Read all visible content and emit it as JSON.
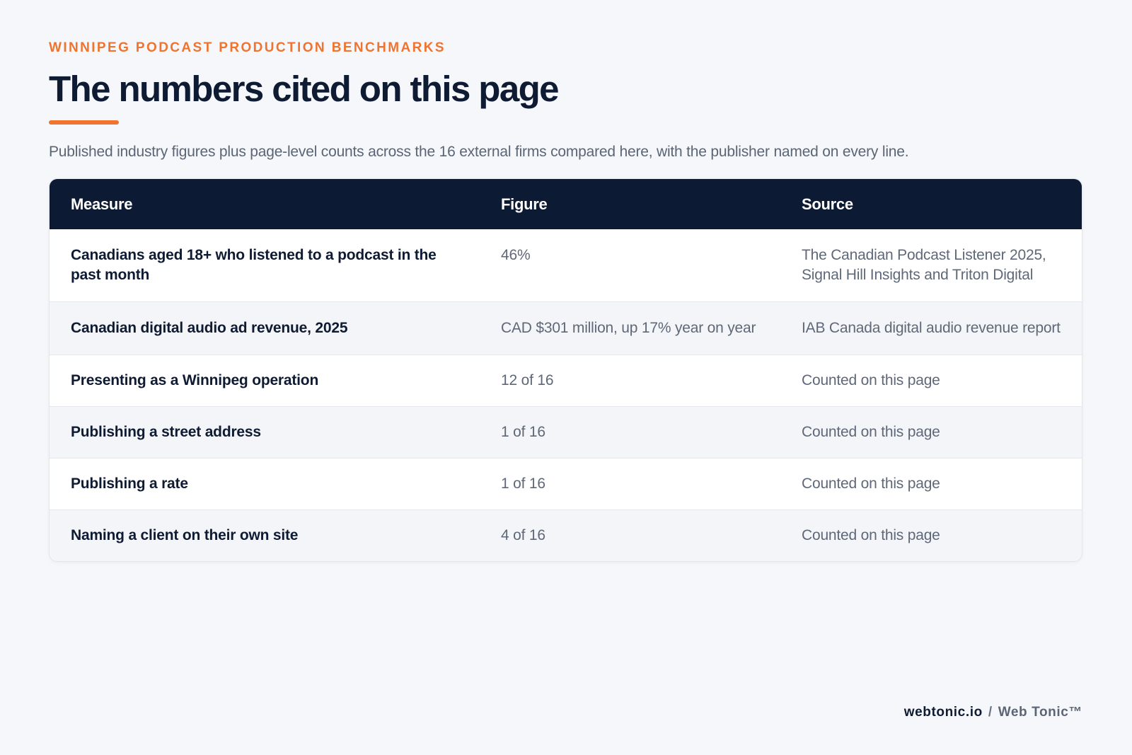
{
  "header": {
    "eyebrow": "WINNIPEG PODCAST PRODUCTION BENCHMARKS",
    "title": "The numbers cited on this page",
    "subtitle": "Published industry figures plus page-level counts across the 16 external firms compared here, with the publisher named on every line."
  },
  "table": {
    "columns": [
      "Measure",
      "Figure",
      "Source"
    ],
    "rows": [
      {
        "measure": "Canadians aged 18+ who listened to a podcast in the past month",
        "figure": "46%",
        "source": "The Canadian Podcast Listener 2025, Signal Hill Insights and Triton Digital"
      },
      {
        "measure": "Canadian digital audio ad revenue, 2025",
        "figure": "CAD $301 million, up 17% year on year",
        "source": "IAB Canada digital audio revenue report"
      },
      {
        "measure": "Presenting as a Winnipeg operation",
        "figure": "12 of 16",
        "source": "Counted on this page"
      },
      {
        "measure": "Publishing a street address",
        "figure": "1 of 16",
        "source": "Counted on this page"
      },
      {
        "measure": "Publishing a rate",
        "figure": "1 of 16",
        "source": "Counted on this page"
      },
      {
        "measure": "Naming a client on their own site",
        "figure": "4 of 16",
        "source": "Counted on this page"
      }
    ]
  },
  "footer": {
    "domain": "webtonic.io",
    "separator": "/",
    "brand": "Web Tonic™"
  },
  "colors": {
    "accent": "#ee7430",
    "header_bg": "#0d1a34",
    "page_bg": "#f5f7fa",
    "text_dark": "#0f1b33",
    "text_muted": "#5f6878"
  }
}
